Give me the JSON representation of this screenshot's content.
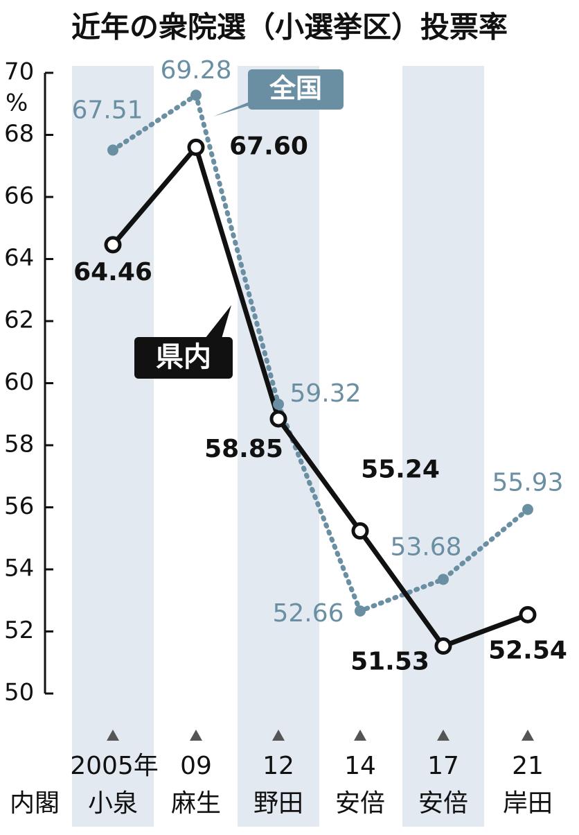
{
  "chart_data": {
    "type": "line",
    "title": "近年の衆院選（小選挙区）投票率",
    "y_label": "%",
    "categories": [
      "2005年",
      "09",
      "12",
      "14",
      "17",
      "21"
    ],
    "row_label": "内閣",
    "cabinets": [
      "小泉",
      "麻生",
      "野田",
      "安倍",
      "安倍",
      "岸田"
    ],
    "series": [
      {
        "name": "全国",
        "color": "#6a8fa3",
        "dash": true,
        "values": [
          67.51,
          69.28,
          59.32,
          52.66,
          53.68,
          55.93
        ],
        "value_labels": [
          "67.51",
          "69.28",
          "59.32",
          "52.66",
          "53.68",
          "55.93"
        ]
      },
      {
        "name": "県内",
        "color": "#111111",
        "dash": false,
        "values": [
          64.46,
          67.6,
          58.85,
          55.24,
          51.53,
          52.54
        ],
        "value_labels": [
          "64.46",
          "67.60",
          "58.85",
          "55.24",
          "51.53",
          "52.54"
        ]
      }
    ],
    "ylim": [
      50,
      70
    ],
    "yticks": [
      50,
      52,
      54,
      56,
      58,
      60,
      62,
      64,
      66,
      68,
      70
    ]
  }
}
